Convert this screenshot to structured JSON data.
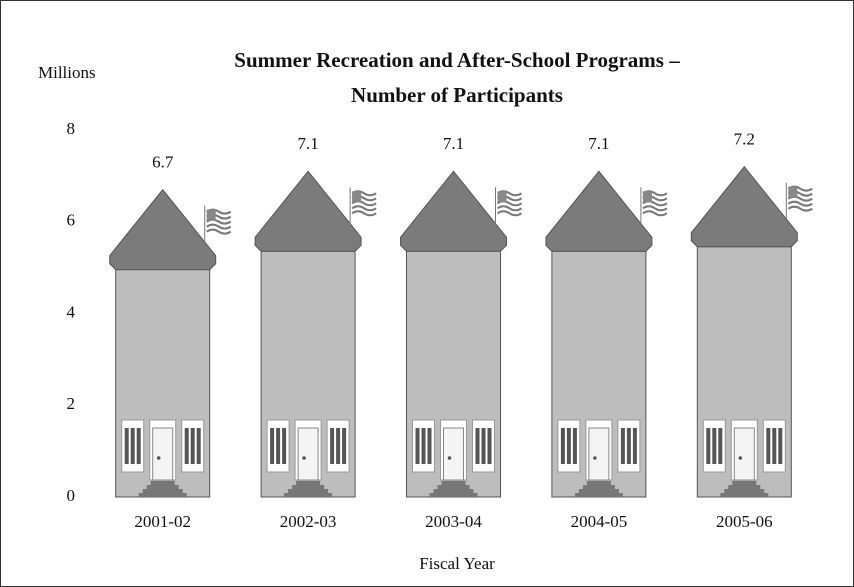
{
  "chart_data": {
    "type": "building-pictograph",
    "title": [
      "Summer Recreation and After-School Programs –",
      "Number of Participants"
    ],
    "y_axis_label": "Millions",
    "x_axis_label": "Fiscal Year",
    "categories": [
      "2001-02",
      "2002-03",
      "2003-04",
      "2004-05",
      "2005-06"
    ],
    "values": [
      6.7,
      7.1,
      7.1,
      7.1,
      7.2
    ],
    "ylim": [
      0,
      8
    ],
    "yticks": [
      0,
      2,
      4,
      6,
      8
    ],
    "color": "#bdbdbd",
    "roof_color": "#7b7b7b"
  }
}
